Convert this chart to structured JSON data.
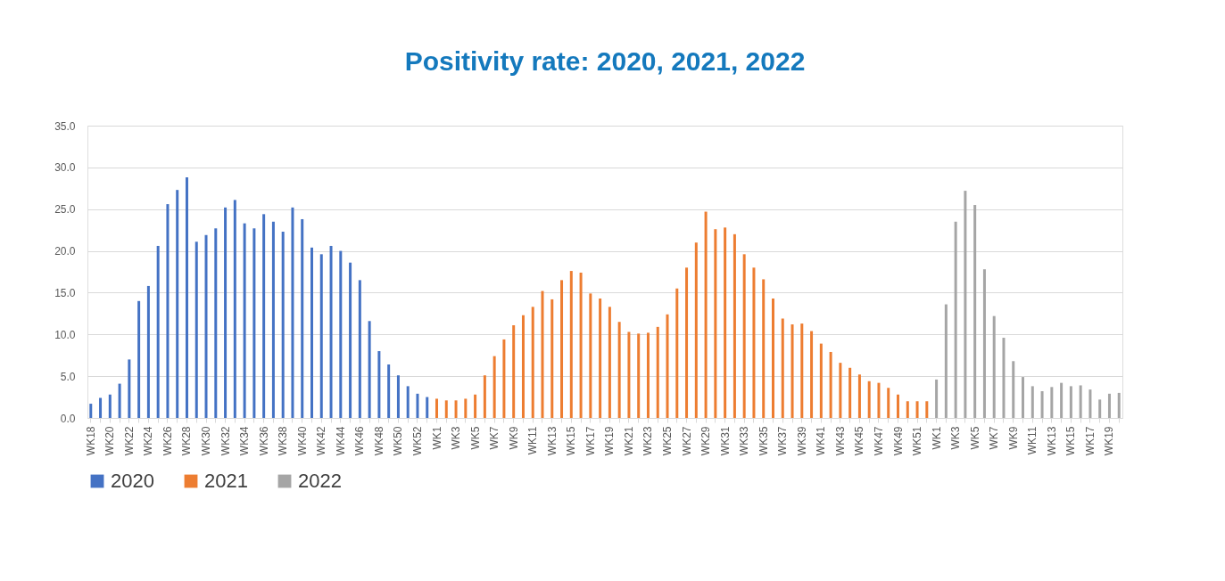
{
  "chart_data": {
    "type": "bar",
    "title": "Positivity rate: 2020, 2021, 2022",
    "categories": [
      "WK18",
      null,
      "WK20",
      null,
      "WK22",
      null,
      "WK24",
      null,
      "WK26",
      null,
      "WK28",
      null,
      "WK30",
      null,
      "WK32",
      null,
      "WK34",
      null,
      "WK36",
      null,
      "WK38",
      null,
      "WK40",
      null,
      "WK42",
      null,
      "WK44",
      null,
      "WK46",
      null,
      "WK48",
      null,
      "WK50",
      null,
      "WK52",
      null,
      "WK1",
      null,
      "WK3",
      null,
      "WK5",
      null,
      "WK7",
      null,
      "WK9",
      null,
      "WK11",
      null,
      "WK13",
      null,
      "WK15",
      null,
      "WK17",
      null,
      "WK19",
      null,
      "WK21",
      null,
      "WK23",
      null,
      "WK25",
      null,
      "WK27",
      null,
      "WK29",
      null,
      "WK31",
      null,
      "WK33",
      null,
      "WK35",
      null,
      "WK37",
      null,
      "WK39",
      null,
      "WK41",
      null,
      "WK43",
      null,
      "WK45",
      null,
      "WK47",
      null,
      "WK49",
      null,
      "WK51",
      null,
      "WK1",
      null,
      "WK3",
      null,
      "WK5",
      null,
      "WK7",
      null,
      "WK9",
      null,
      "WK11",
      null,
      "WK13",
      null,
      "WK15",
      null,
      "WK17",
      null,
      "WK19",
      null
    ],
    "series": [
      {
        "name": "2020",
        "color": "#4472c4",
        "values": [
          1.7,
          2.4,
          2.8,
          4.1,
          7.0,
          14.0,
          15.8,
          20.6,
          25.6,
          27.3,
          28.8,
          21.1,
          21.9,
          22.7,
          25.2,
          26.1,
          23.3,
          22.7,
          24.4,
          23.5,
          22.3,
          25.2,
          23.8,
          20.4,
          19.6,
          20.6,
          20.0,
          18.6,
          16.5,
          11.6,
          8.0,
          6.4,
          5.1,
          3.8,
          2.9,
          2.5,
          null,
          null,
          null,
          null,
          null,
          null,
          null,
          null,
          null,
          null,
          null,
          null,
          null,
          null,
          null,
          null,
          null,
          null,
          null,
          null,
          null,
          null,
          null,
          null,
          null,
          null,
          null,
          null,
          null,
          null,
          null,
          null,
          null,
          null,
          null,
          null,
          null,
          null,
          null,
          null,
          null,
          null,
          null,
          null,
          null,
          null,
          null,
          null,
          null,
          null,
          null,
          null,
          null,
          null,
          null,
          null,
          null,
          null,
          null,
          null,
          null,
          null,
          null,
          null,
          null,
          null,
          null,
          null,
          null,
          null,
          null,
          null
        ]
      },
      {
        "name": "2021",
        "color": "#ed7d31",
        "values": [
          null,
          null,
          null,
          null,
          null,
          null,
          null,
          null,
          null,
          null,
          null,
          null,
          null,
          null,
          null,
          null,
          null,
          null,
          null,
          null,
          null,
          null,
          null,
          null,
          null,
          null,
          null,
          null,
          null,
          null,
          null,
          null,
          null,
          null,
          null,
          null,
          2.3,
          2.1,
          2.1,
          2.3,
          2.8,
          5.1,
          7.4,
          9.4,
          11.1,
          12.3,
          13.3,
          15.2,
          14.2,
          16.5,
          17.6,
          17.4,
          14.9,
          14.3,
          13.3,
          11.5,
          10.3,
          10.1,
          10.2,
          10.9,
          12.4,
          15.5,
          18.0,
          21.0,
          24.7,
          22.6,
          22.8,
          22.0,
          19.6,
          18.0,
          16.6,
          14.3,
          11.9,
          11.2,
          11.3,
          10.4,
          8.9,
          7.9,
          6.6,
          6.0,
          5.2,
          4.4,
          4.2,
          3.6,
          2.8,
          2.0,
          2.0,
          2.0,
          null,
          null,
          null,
          null,
          null,
          null,
          null,
          null,
          null,
          null,
          null,
          null,
          null,
          null,
          null,
          null,
          null,
          null,
          null,
          null
        ]
      },
      {
        "name": "2022",
        "color": "#a5a5a5",
        "values": [
          null,
          null,
          null,
          null,
          null,
          null,
          null,
          null,
          null,
          null,
          null,
          null,
          null,
          null,
          null,
          null,
          null,
          null,
          null,
          null,
          null,
          null,
          null,
          null,
          null,
          null,
          null,
          null,
          null,
          null,
          null,
          null,
          null,
          null,
          null,
          null,
          null,
          null,
          null,
          null,
          null,
          null,
          null,
          null,
          null,
          null,
          null,
          null,
          null,
          null,
          null,
          null,
          null,
          null,
          null,
          null,
          null,
          null,
          null,
          null,
          null,
          null,
          null,
          null,
          null,
          null,
          null,
          null,
          null,
          null,
          null,
          null,
          null,
          null,
          null,
          null,
          null,
          null,
          null,
          null,
          null,
          null,
          null,
          null,
          null,
          null,
          null,
          null,
          4.6,
          13.6,
          23.5,
          27.2,
          25.5,
          17.8,
          12.2,
          9.6,
          6.8,
          4.9,
          3.8,
          3.2,
          3.7,
          4.2,
          3.8,
          3.9,
          3.4,
          2.2,
          2.9,
          3.0
        ]
      }
    ],
    "ylim": [
      0,
      35
    ],
    "yticks": [
      {
        "value": 0,
        "label": "0.0"
      },
      {
        "value": 5,
        "label": "5.0"
      },
      {
        "value": 10,
        "label": "10.0"
      },
      {
        "value": 15,
        "label": "15.0"
      },
      {
        "value": 20,
        "label": "20.0"
      },
      {
        "value": 25,
        "label": "25.0"
      },
      {
        "value": 30,
        "label": "30.0"
      },
      {
        "value": 35,
        "label": "35.0"
      }
    ],
    "grid": "y",
    "legend": "bottom"
  }
}
